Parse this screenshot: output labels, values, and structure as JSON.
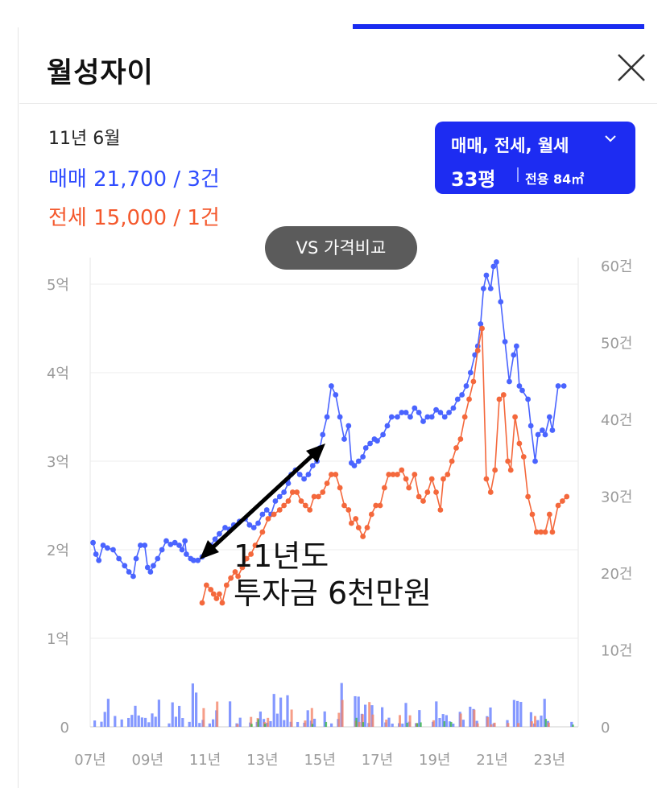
{
  "header": {
    "title": "월성자이",
    "close_icon": "close-icon"
  },
  "summary": {
    "date": "11년 6월",
    "sale": "매매 21,700 / 3건",
    "jeonse": "전세 15,000 / 1건"
  },
  "filter": {
    "types": "매매, 전세, 월세",
    "size": "33평",
    "area": "전용 84㎡",
    "chevron_icon": "chevron-down-icon"
  },
  "compare_button": "VS 가격비교",
  "annotation": {
    "line1": "11년도",
    "line2": "투자금 6천만원"
  },
  "colors": {
    "sale": "#4a64ff",
    "jeonse": "#f4683c",
    "accent": "#1d2cf2",
    "arrow": "#000000"
  },
  "chart_data": {
    "type": "line",
    "left_axis": {
      "ticks": [
        "0",
        "1억",
        "2억",
        "3억",
        "4억",
        "5억"
      ],
      "values": [
        0,
        10000,
        20000,
        30000,
        40000,
        50000
      ]
    },
    "right_axis": {
      "ticks": [
        "0",
        "10건",
        "20건",
        "30건",
        "40건",
        "50건",
        "60건"
      ],
      "values": [
        0,
        10,
        20,
        30,
        40,
        50,
        60
      ]
    },
    "x_ticks": [
      "07년",
      "09년",
      "11년",
      "13년",
      "15년",
      "17년",
      "19년",
      "21년",
      "23년"
    ],
    "x_range": [
      2007.0,
      2024.0
    ],
    "y_range": [
      0,
      53000
    ],
    "grid": true,
    "series": [
      {
        "name": "매매",
        "color": "#4a64ff",
        "points": [
          [
            2007.1,
            20800
          ],
          [
            2007.2,
            19500
          ],
          [
            2007.3,
            18800
          ],
          [
            2007.45,
            20500
          ],
          [
            2007.6,
            20200
          ],
          [
            2007.8,
            20000
          ],
          [
            2008.0,
            19000
          ],
          [
            2008.2,
            18200
          ],
          [
            2008.35,
            17500
          ],
          [
            2008.5,
            17000
          ],
          [
            2008.6,
            19000
          ],
          [
            2008.75,
            20500
          ],
          [
            2008.9,
            20500
          ],
          [
            2009.0,
            18000
          ],
          [
            2009.1,
            17500
          ],
          [
            2009.2,
            18200
          ],
          [
            2009.35,
            19000
          ],
          [
            2009.5,
            20000
          ],
          [
            2009.65,
            21000
          ],
          [
            2009.8,
            20600
          ],
          [
            2009.95,
            20800
          ],
          [
            2010.1,
            20500
          ],
          [
            2010.2,
            20000
          ],
          [
            2010.3,
            21000
          ],
          [
            2010.35,
            19500
          ],
          [
            2010.5,
            19000
          ],
          [
            2010.6,
            18800
          ],
          [
            2010.75,
            18800
          ],
          [
            2010.9,
            19200
          ],
          [
            2011.0,
            19500
          ],
          [
            2011.2,
            20500
          ],
          [
            2011.35,
            21200
          ],
          [
            2011.5,
            21800
          ],
          [
            2011.7,
            22500
          ],
          [
            2011.85,
            22300
          ],
          [
            2012.0,
            22800
          ],
          [
            2012.2,
            23200
          ],
          [
            2012.4,
            23500
          ],
          [
            2012.55,
            22800
          ],
          [
            2012.7,
            22500
          ],
          [
            2012.85,
            23000
          ],
          [
            2013.0,
            24000
          ],
          [
            2013.15,
            24500
          ],
          [
            2013.3,
            24000
          ],
          [
            2013.45,
            25500
          ],
          [
            2013.6,
            26000
          ],
          [
            2013.75,
            26500
          ],
          [
            2013.9,
            27500
          ],
          [
            2014.0,
            28500
          ],
          [
            2014.15,
            29000
          ],
          [
            2014.3,
            28500
          ],
          [
            2014.45,
            28000
          ],
          [
            2014.6,
            28500
          ],
          [
            2014.75,
            29500
          ],
          [
            2014.9,
            30000
          ],
          [
            2015.0,
            31500
          ],
          [
            2015.1,
            33000
          ],
          [
            2015.25,
            35000
          ],
          [
            2015.4,
            38500
          ],
          [
            2015.55,
            37500
          ],
          [
            2015.7,
            35000
          ],
          [
            2015.85,
            32500
          ],
          [
            2016.0,
            34000
          ],
          [
            2016.1,
            29800
          ],
          [
            2016.2,
            29500
          ],
          [
            2016.35,
            30000
          ],
          [
            2016.5,
            30500
          ],
          [
            2016.6,
            31500
          ],
          [
            2016.75,
            32000
          ],
          [
            2016.9,
            32500
          ],
          [
            2017.0,
            32300
          ],
          [
            2017.2,
            33000
          ],
          [
            2017.35,
            34000
          ],
          [
            2017.5,
            35000
          ],
          [
            2017.7,
            35000
          ],
          [
            2017.85,
            35500
          ],
          [
            2018.0,
            35500
          ],
          [
            2018.15,
            35000
          ],
          [
            2018.3,
            36000
          ],
          [
            2018.45,
            35500
          ],
          [
            2018.6,
            34500
          ],
          [
            2018.75,
            35000
          ],
          [
            2018.9,
            35000
          ],
          [
            2019.05,
            35800
          ],
          [
            2019.2,
            35500
          ],
          [
            2019.35,
            35000
          ],
          [
            2019.5,
            35500
          ],
          [
            2019.65,
            36000
          ],
          [
            2019.8,
            37000
          ],
          [
            2019.95,
            37500
          ],
          [
            2020.1,
            38500
          ],
          [
            2020.25,
            40000
          ],
          [
            2020.4,
            42000
          ],
          [
            2020.5,
            43000
          ],
          [
            2020.6,
            45500
          ],
          [
            2020.7,
            49500
          ],
          [
            2020.8,
            51000
          ],
          [
            2020.95,
            49500
          ],
          [
            2021.05,
            52000
          ],
          [
            2021.15,
            52500
          ],
          [
            2021.3,
            48000
          ],
          [
            2021.45,
            43500
          ],
          [
            2021.6,
            39000
          ],
          [
            2021.75,
            42000
          ],
          [
            2021.85,
            43000
          ],
          [
            2021.95,
            38500
          ],
          [
            2022.05,
            38000
          ],
          [
            2022.25,
            37000
          ],
          [
            2022.35,
            34000
          ],
          [
            2022.5,
            30000
          ],
          [
            2022.6,
            33000
          ],
          [
            2022.75,
            33500
          ],
          [
            2022.85,
            33000
          ],
          [
            2023.0,
            35000
          ],
          [
            2023.1,
            33500
          ],
          [
            2023.3,
            38500
          ],
          [
            2023.5,
            38500
          ]
        ]
      },
      {
        "name": "전세",
        "color": "#f4683c",
        "points": [
          [
            2010.9,
            14000
          ],
          [
            2011.05,
            16000
          ],
          [
            2011.2,
            15500
          ],
          [
            2011.3,
            15000
          ],
          [
            2011.4,
            14500
          ],
          [
            2011.5,
            15000
          ],
          [
            2011.6,
            14000
          ],
          [
            2011.75,
            16000
          ],
          [
            2011.9,
            16800
          ],
          [
            2012.05,
            17500
          ],
          [
            2012.15,
            17000
          ],
          [
            2012.3,
            18000
          ],
          [
            2012.45,
            19000
          ],
          [
            2012.6,
            19500
          ],
          [
            2012.75,
            20500
          ],
          [
            2013.0,
            22000
          ],
          [
            2013.2,
            23500
          ],
          [
            2013.4,
            24000
          ],
          [
            2013.6,
            24500
          ],
          [
            2013.75,
            25000
          ],
          [
            2013.9,
            25500
          ],
          [
            2014.05,
            26500
          ],
          [
            2014.2,
            26500
          ],
          [
            2014.35,
            25500
          ],
          [
            2014.5,
            25000
          ],
          [
            2014.65,
            24500
          ],
          [
            2014.8,
            26000
          ],
          [
            2014.95,
            26000
          ],
          [
            2015.1,
            26500
          ],
          [
            2015.25,
            27500
          ],
          [
            2015.4,
            28500
          ],
          [
            2015.55,
            28500
          ],
          [
            2015.7,
            27000
          ],
          [
            2015.85,
            25000
          ],
          [
            2016.0,
            24500
          ],
          [
            2016.1,
            23000
          ],
          [
            2016.25,
            23500
          ],
          [
            2016.35,
            22500
          ],
          [
            2016.5,
            21500
          ],
          [
            2016.65,
            22500
          ],
          [
            2016.8,
            24000
          ],
          [
            2016.95,
            25000
          ],
          [
            2017.1,
            25000
          ],
          [
            2017.25,
            27000
          ],
          [
            2017.4,
            28500
          ],
          [
            2017.55,
            28500
          ],
          [
            2017.7,
            28500
          ],
          [
            2017.85,
            29000
          ],
          [
            2018.0,
            28000
          ],
          [
            2018.1,
            27000
          ],
          [
            2018.3,
            28500
          ],
          [
            2018.45,
            26000
          ],
          [
            2018.6,
            25500
          ],
          [
            2018.75,
            26500
          ],
          [
            2018.9,
            28000
          ],
          [
            2019.05,
            26500
          ],
          [
            2019.2,
            24500
          ],
          [
            2019.3,
            28000
          ],
          [
            2019.45,
            28500
          ],
          [
            2019.6,
            30000
          ],
          [
            2019.75,
            31500
          ],
          [
            2019.9,
            32500
          ],
          [
            2020.05,
            35000
          ],
          [
            2020.2,
            37000
          ],
          [
            2020.35,
            39000
          ],
          [
            2020.5,
            42500
          ],
          [
            2020.65,
            45000
          ],
          [
            2020.8,
            28000
          ],
          [
            2020.95,
            26500
          ],
          [
            2021.1,
            29000
          ],
          [
            2021.25,
            37000
          ],
          [
            2021.4,
            37500
          ],
          [
            2021.55,
            30000
          ],
          [
            2021.65,
            29000
          ],
          [
            2021.8,
            35000
          ],
          [
            2021.95,
            32000
          ],
          [
            2022.1,
            30500
          ],
          [
            2022.25,
            26000
          ],
          [
            2022.4,
            24000
          ],
          [
            2022.55,
            22000
          ],
          [
            2022.7,
            22000
          ],
          [
            2022.85,
            22000
          ],
          [
            2023.0,
            24000
          ],
          [
            2023.1,
            22000
          ],
          [
            2023.3,
            25000
          ],
          [
            2023.45,
            25500
          ],
          [
            2023.6,
            26000
          ]
        ]
      }
    ]
  }
}
